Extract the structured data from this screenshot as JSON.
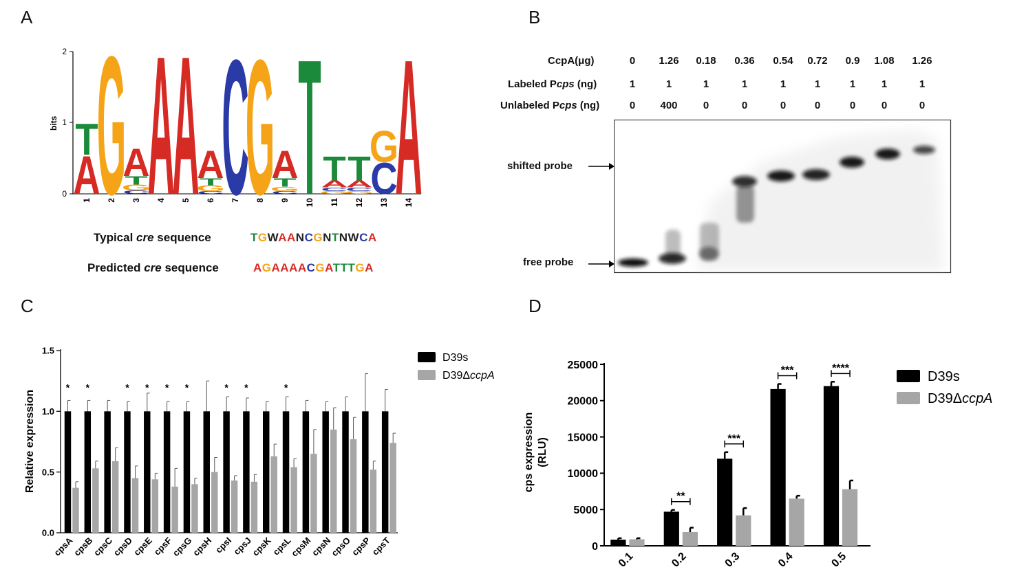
{
  "panels": {
    "a": "A",
    "b": "B",
    "c": "C",
    "d": "D"
  },
  "logo": {
    "ylabel": "bits",
    "yticks": [
      "0",
      "1",
      "2"
    ],
    "positions": [
      "1",
      "2",
      "3",
      "4",
      "5",
      "6",
      "7",
      "8",
      "9",
      "10",
      "11",
      "12",
      "13",
      "14"
    ],
    "colors": {
      "A": "#d62a25",
      "C": "#2a3aa6",
      "G": "#f5a418",
      "T": "#1b8a3a"
    },
    "stacks": [
      [
        [
          "A",
          0.55
        ],
        [
          "T",
          0.45
        ]
      ],
      [
        [
          "G",
          2.0
        ]
      ],
      [
        [
          "C",
          0.05
        ],
        [
          "G",
          0.08
        ],
        [
          "T",
          0.12
        ],
        [
          "A",
          0.4
        ]
      ],
      [
        [
          "A",
          2.0
        ]
      ],
      [
        [
          "A",
          2.0
        ]
      ],
      [
        [
          "C",
          0.04
        ],
        [
          "G",
          0.08
        ],
        [
          "T",
          0.1
        ],
        [
          "A",
          0.4
        ]
      ],
      [
        [
          "C",
          1.95
        ]
      ],
      [
        [
          "G",
          1.95
        ]
      ],
      [
        [
          "C",
          0.04
        ],
        [
          "G",
          0.06
        ],
        [
          "T",
          0.12
        ],
        [
          "A",
          0.4
        ]
      ],
      [
        [
          "T",
          1.95
        ]
      ],
      [
        [
          "G",
          0.04
        ],
        [
          "C",
          0.05
        ],
        [
          "A",
          0.1
        ],
        [
          "T",
          0.35
        ]
      ],
      [
        [
          "G",
          0.04
        ],
        [
          "C",
          0.05
        ],
        [
          "A",
          0.1
        ],
        [
          "T",
          0.35
        ]
      ],
      [
        [
          "C",
          0.45
        ],
        [
          "G",
          0.45
        ]
      ],
      [
        [
          "A",
          1.95
        ]
      ]
    ]
  },
  "cre": {
    "typical_pre": "Typical ",
    "typical_em": "cre",
    "typical_post": " sequence",
    "typical_seq": "TGWAANCGNTNWCA",
    "predicted_pre": "Predicted ",
    "predicted_em": "cre",
    "predicted_post": " sequence",
    "predicted_seq": "AGAAAACGATTTGA"
  },
  "gel": {
    "row1_label": "CcpA(μg)",
    "row2_pre": "Labeled P",
    "row2_em": "cps",
    "row2_post": " (ng)",
    "row3_pre": "Unlabeled P",
    "row3_em": "cps",
    "row3_post": " (ng)",
    "ccpa": [
      "0",
      "1.26",
      "0.18",
      "0.36",
      "0.54",
      "0.72",
      "0.9",
      "1.08",
      "1.26"
    ],
    "labeled": [
      "1",
      "1",
      "1",
      "1",
      "1",
      "1",
      "1",
      "1",
      "1"
    ],
    "unlabeled": [
      "0",
      "400",
      "0",
      "0",
      "0",
      "0",
      "0",
      "0",
      "0"
    ],
    "shifted_label": "shifted probe",
    "free_label": "free probe"
  },
  "chart_data": [
    {
      "type": "bar",
      "categories": [
        "cpsA",
        "cpsB",
        "cpsC",
        "cpsD",
        "cpsE",
        "cpsF",
        "cpsG",
        "cpsH",
        "cpsI",
        "cpsJ",
        "cpsK",
        "cpsL",
        "cpsM",
        "cpsN",
        "cpsO",
        "cpsP",
        "cpsT"
      ],
      "series": [
        {
          "name": "D39s",
          "color": "#000000",
          "values": [
            1,
            1,
            1,
            1,
            1,
            1,
            1,
            1,
            1,
            1,
            1,
            1,
            1,
            1,
            1,
            1,
            1
          ],
          "errors": [
            0.09,
            0.09,
            0.09,
            0.08,
            0.15,
            0.08,
            0.08,
            0.25,
            0.12,
            0.11,
            0.08,
            0.12,
            0.09,
            0.08,
            0.12,
            0.31,
            0.18
          ]
        },
        {
          "name": "D39ΔccpA",
          "name_pre": "D39Δ",
          "name_em": "ccpA",
          "color": "#a6a6a6",
          "values": [
            0.37,
            0.53,
            0.59,
            0.45,
            0.44,
            0.38,
            0.4,
            0.5,
            0.43,
            0.42,
            0.63,
            0.54,
            0.65,
            0.85,
            0.77,
            0.52,
            0.74
          ],
          "errors": [
            0.05,
            0.06,
            0.11,
            0.1,
            0.05,
            0.15,
            0.05,
            0.12,
            0.04,
            0.06,
            0.1,
            0.07,
            0.2,
            0.18,
            0.18,
            0.07,
            0.08
          ]
        }
      ],
      "significance": [
        "*",
        "*",
        "",
        "*",
        "*",
        "*",
        "*",
        "",
        "*",
        "*",
        "",
        "*",
        "",
        "",
        "",
        "",
        ""
      ],
      "ylabel": "Relative expression",
      "yticks": [
        "0.0",
        "0.5",
        "1.0",
        "1.5"
      ],
      "ylim": [
        0,
        1.5
      ],
      "legend": "top-right"
    },
    {
      "type": "bar",
      "categories": [
        "0.1",
        "0.2",
        "0.3",
        "0.4",
        "0.5"
      ],
      "series": [
        {
          "name": "D39s",
          "color": "#000000",
          "values": [
            850,
            4700,
            12000,
            21600,
            22000
          ],
          "errors": [
            200,
            250,
            900,
            700,
            600
          ]
        },
        {
          "name": "D39ΔccpA",
          "name_pre": "D39Δ",
          "name_em": "ccpA",
          "color": "#a6a6a6",
          "values": [
            900,
            1900,
            4200,
            6500,
            7800
          ],
          "errors": [
            150,
            600,
            1000,
            400,
            1200
          ]
        }
      ],
      "significance": [
        "",
        "**",
        "***",
        "***",
        "****"
      ],
      "ylabel_line1": "cps expression",
      "ylabel_line2": "(RLU)",
      "yticks": [
        "0",
        "5000",
        "10000",
        "15000",
        "20000",
        "25000"
      ],
      "ylim": [
        0,
        25000
      ],
      "legend": "top-right"
    }
  ]
}
